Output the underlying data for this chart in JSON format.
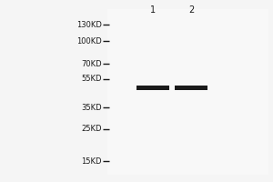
{
  "bg_color": "#f5f5f5",
  "blot_bg_color": "#f0f0f0",
  "mw_labels": [
    "130KD",
    "100KD",
    "70KD",
    "55KD",
    "35KD",
    "25KD",
    "15KD"
  ],
  "mw_positions": [
    130,
    100,
    70,
    55,
    35,
    25,
    15
  ],
  "lane_labels": [
    "1",
    "2"
  ],
  "band_mw": 48,
  "band_color": "#1a1a1a",
  "tick_color": "#1a1a1a",
  "label_color": "#1a1a1a",
  "label_fontsize": 6.0,
  "lane_fontsize": 7.0
}
